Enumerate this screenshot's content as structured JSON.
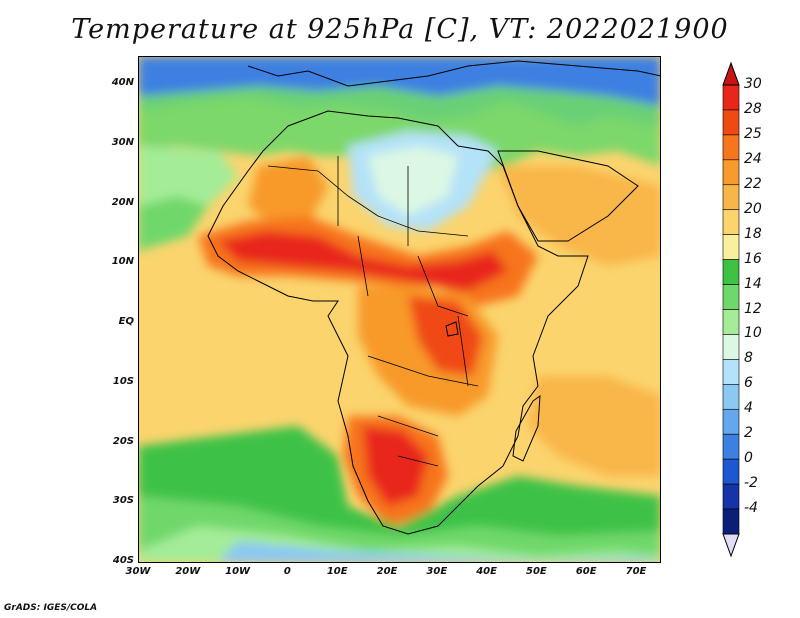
{
  "title": "Temperature at 925hPa [C], VT: 2022021900",
  "credit": "GrADS: IGES/COLA",
  "map": {
    "lat_labels": [
      "40N",
      "30N",
      "20N",
      "10N",
      "EQ",
      "10S",
      "20S",
      "30S",
      "40S"
    ],
    "lon_labels": [
      "30W",
      "20W",
      "10W",
      "0",
      "10E",
      "20E",
      "30E",
      "40E",
      "50E",
      "60E",
      "70E"
    ]
  },
  "colorbar": {
    "labels": [
      "30",
      "28",
      "25",
      "24",
      "22",
      "20",
      "18",
      "16",
      "14",
      "12",
      "10",
      "8",
      "6",
      "4",
      "2",
      "0",
      "-2",
      "-4"
    ],
    "colors": [
      "#e8261b",
      "#f04a14",
      "#f7751c",
      "#f89a2c",
      "#f9b648",
      "#fbd46e",
      "#f8f09c",
      "#3ec246",
      "#6fd86a",
      "#a4ec98",
      "#dcf8e4",
      "#b4e2f8",
      "#8bc8f2",
      "#64a7ec",
      "#3c80e2",
      "#1e57d2",
      "#1434a8",
      "#0b1f78"
    ],
    "over_color": "#c81414",
    "under_color": "#e2dcf6"
  }
}
